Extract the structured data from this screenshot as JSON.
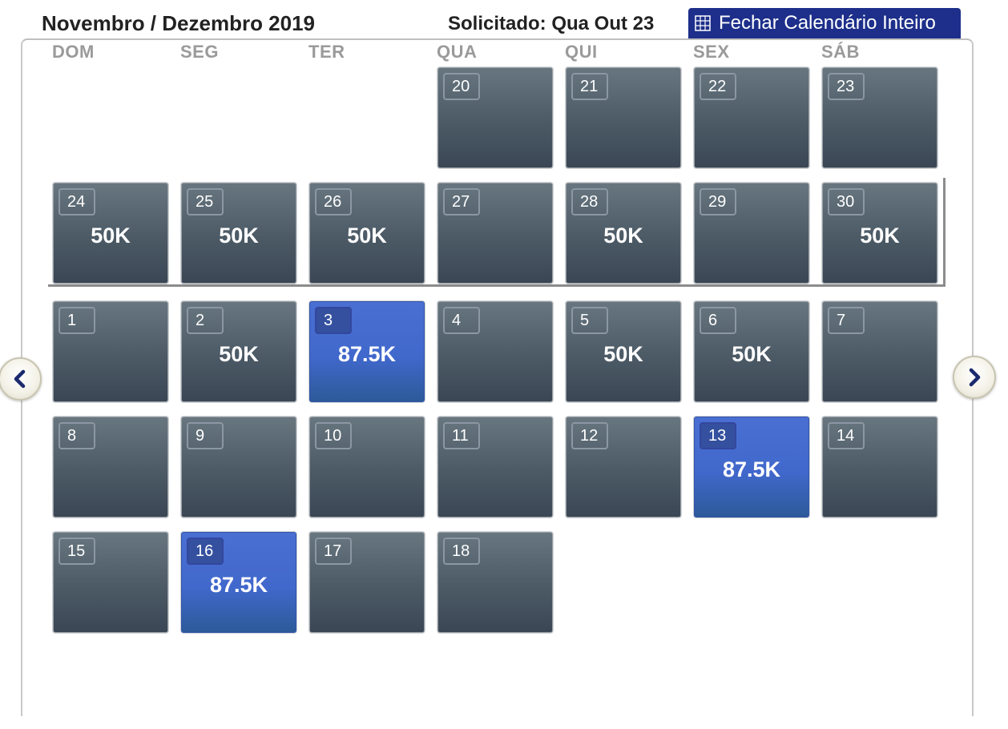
{
  "header": {
    "month_title": "Novembro / Dezembro 2019",
    "requested": "Solicitado: Qua Out 23",
    "close_button_label": "Fechar Calendário Inteiro"
  },
  "weekdays": [
    "DOM",
    "SEG",
    "TER",
    "QUA",
    "QUI",
    "SEX",
    "SÁB"
  ],
  "colors": {
    "day_tile": "#4c5a66",
    "award_tile": "#4168cc",
    "close_button": "#1d2f8a"
  },
  "icons": {
    "close_button": "grid-icon",
    "prev": "chevron-left-icon",
    "next": "chevron-right-icon"
  },
  "weeks": [
    [
      null,
      null,
      null,
      {
        "day": "20",
        "price": ""
      },
      {
        "day": "21",
        "price": ""
      },
      {
        "day": "22",
        "price": ""
      },
      {
        "day": "23",
        "price": ""
      }
    ],
    [
      {
        "day": "24",
        "price": "50K"
      },
      {
        "day": "25",
        "price": "50K"
      },
      {
        "day": "26",
        "price": "50K"
      },
      {
        "day": "27",
        "price": ""
      },
      {
        "day": "28",
        "price": "50K"
      },
      {
        "day": "29",
        "price": ""
      },
      {
        "day": "30",
        "price": "50K"
      }
    ],
    [
      {
        "day": "1",
        "price": ""
      },
      {
        "day": "2",
        "price": "50K"
      },
      {
        "day": "3",
        "price": "87.5K",
        "highlight": true
      },
      {
        "day": "4",
        "price": ""
      },
      {
        "day": "5",
        "price": "50K"
      },
      {
        "day": "6",
        "price": "50K"
      },
      {
        "day": "7",
        "price": ""
      }
    ],
    [
      {
        "day": "8",
        "price": ""
      },
      {
        "day": "9",
        "price": ""
      },
      {
        "day": "10",
        "price": ""
      },
      {
        "day": "11",
        "price": ""
      },
      {
        "day": "12",
        "price": ""
      },
      {
        "day": "13",
        "price": "87.5K",
        "highlight": true
      },
      {
        "day": "14",
        "price": ""
      }
    ],
    [
      {
        "day": "15",
        "price": ""
      },
      {
        "day": "16",
        "price": "87.5K",
        "highlight": true
      },
      {
        "day": "17",
        "price": ""
      },
      {
        "day": "18",
        "price": ""
      },
      null,
      null,
      null
    ]
  ]
}
